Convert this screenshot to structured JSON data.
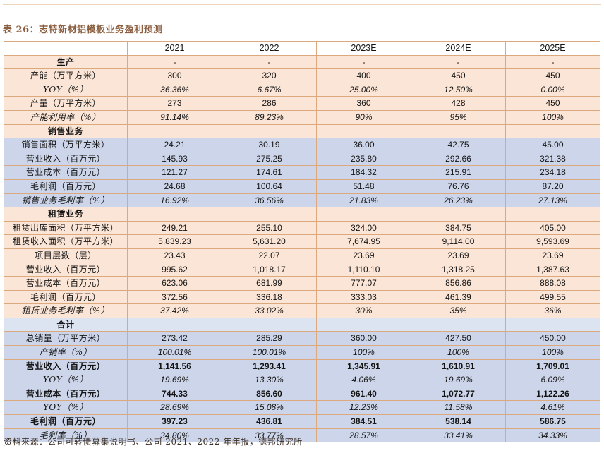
{
  "title": "表 26：志特新材铝模板业务盈利预测",
  "source": "资料来源：公司可转债募集说明书、公司 2021、2022 年年报，德邦研究所",
  "colors": {
    "peach": "#fbe5d6",
    "blue": "#ccd5e9",
    "bluelight": "#dce3f1",
    "border": "#dca87e",
    "title": "#8c5f41",
    "rule": "#ecd4bd"
  },
  "table": {
    "columns": [
      "",
      "2021",
      "2022",
      "2023E",
      "2024E",
      "2025E"
    ],
    "rows": [
      {
        "label": "生产",
        "type": "section",
        "fill": "peach",
        "values": [
          "-",
          "-",
          "-",
          "-",
          "-"
        ]
      },
      {
        "label": "产能（万平方米）",
        "fill": "peach",
        "values": [
          "300",
          "320",
          "400",
          "450",
          "450"
        ]
      },
      {
        "label": "YOY（%）",
        "fill": "peach",
        "italic": true,
        "values": [
          "36.36%",
          "6.67%",
          "25.00%",
          "12.50%",
          "0.00%"
        ]
      },
      {
        "label": "产量（万平方米）",
        "fill": "peach",
        "values": [
          "273",
          "286",
          "360",
          "428",
          "450"
        ]
      },
      {
        "label": "产能利用率（%）",
        "fill": "peach",
        "italic": true,
        "values": [
          "91.14%",
          "89.23%",
          "90%",
          "95%",
          "100%"
        ]
      },
      {
        "label": "销售业务",
        "type": "section",
        "fill": "peach",
        "values": [
          "",
          "",
          "",
          "",
          ""
        ]
      },
      {
        "label": "销售面积（万平方米）",
        "fill": "blue",
        "values": [
          "24.21",
          "30.19",
          "36.00",
          "42.75",
          "45.00"
        ]
      },
      {
        "label": "营业收入（百万元）",
        "fill": "blue",
        "values": [
          "145.93",
          "275.25",
          "235.80",
          "292.66",
          "321.38"
        ]
      },
      {
        "label": "营业成本（百万元）",
        "fill": "blue",
        "values": [
          "121.27",
          "174.61",
          "184.32",
          "215.91",
          "234.18"
        ]
      },
      {
        "label": "毛利润（百万元）",
        "fill": "blue",
        "values": [
          "24.68",
          "100.64",
          "51.48",
          "76.76",
          "87.20"
        ]
      },
      {
        "label": "销售业务毛利率（%）",
        "fill": "blue",
        "italic": true,
        "values": [
          "16.92%",
          "36.56%",
          "21.83%",
          "26.23%",
          "27.13%"
        ]
      },
      {
        "label": "租赁业务",
        "type": "section",
        "fill": "peach",
        "values": [
          "",
          "",
          "",
          "",
          ""
        ]
      },
      {
        "label": "租赁出库面积（万平方米）",
        "fill": "peach",
        "values": [
          "249.21",
          "255.10",
          "324.00",
          "384.75",
          "405.00"
        ]
      },
      {
        "label": "租赁收入面积（万平方米）",
        "fill": "peach",
        "values": [
          "5,839.23",
          "5,631.20",
          "7,674.95",
          "9,114.00",
          "9,593.69"
        ]
      },
      {
        "label": "项目层数（层）",
        "fill": "peach",
        "values": [
          "23.43",
          "22.07",
          "23.69",
          "23.69",
          "23.69"
        ]
      },
      {
        "label": "营业收入（百万元）",
        "fill": "peach",
        "values": [
          "995.62",
          "1,018.17",
          "1,110.10",
          "1,318.25",
          "1,387.63"
        ]
      },
      {
        "label": "营业成本（百万元）",
        "fill": "peach",
        "values": [
          "623.06",
          "681.99",
          "777.07",
          "856.86",
          "888.08"
        ]
      },
      {
        "label": "毛利润（百万元）",
        "fill": "peach",
        "values": [
          "372.56",
          "336.18",
          "333.03",
          "461.39",
          "499.55"
        ]
      },
      {
        "label": "租赁业务毛利率（%）",
        "fill": "peach",
        "italic": true,
        "values": [
          "37.42%",
          "33.02%",
          "30%",
          "35%",
          "36%"
        ]
      },
      {
        "label": "合计",
        "type": "section",
        "fill": "bluelight",
        "values": [
          "",
          "",
          "",
          "",
          ""
        ]
      },
      {
        "label": "总销量（万平方米）",
        "fill": "blue",
        "values": [
          "273.42",
          "285.29",
          "360.00",
          "427.50",
          "450.00"
        ]
      },
      {
        "label": "产销率（%）",
        "fill": "blue",
        "italic": true,
        "values": [
          "100.01%",
          "100.01%",
          "100%",
          "100%",
          "100%"
        ]
      },
      {
        "label": "营业收入（百万元）",
        "fill": "blue",
        "bold": true,
        "values": [
          "1,141.56",
          "1,293.41",
          "1,345.91",
          "1,610.91",
          "1,709.01"
        ]
      },
      {
        "label": "YOY（%）",
        "fill": "blue",
        "italic": true,
        "values": [
          "19.69%",
          "13.30%",
          "4.06%",
          "19.69%",
          "6.09%"
        ]
      },
      {
        "label": "营业成本（百万元）",
        "fill": "blue",
        "bold": true,
        "values": [
          "744.33",
          "856.60",
          "961.40",
          "1,072.77",
          "1,122.26"
        ]
      },
      {
        "label": "YOY（%）",
        "fill": "blue",
        "italic": true,
        "values": [
          "28.69%",
          "15.08%",
          "12.23%",
          "11.58%",
          "4.61%"
        ]
      },
      {
        "label": "毛利润（百万元）",
        "fill": "blue",
        "bold": true,
        "values": [
          "397.23",
          "436.81",
          "384.51",
          "538.14",
          "586.75"
        ]
      },
      {
        "label": "毛利率（%）",
        "fill": "blue",
        "italic": true,
        "values": [
          "34.80%",
          "33.77%",
          "28.57%",
          "33.41%",
          "34.33%"
        ]
      }
    ]
  }
}
